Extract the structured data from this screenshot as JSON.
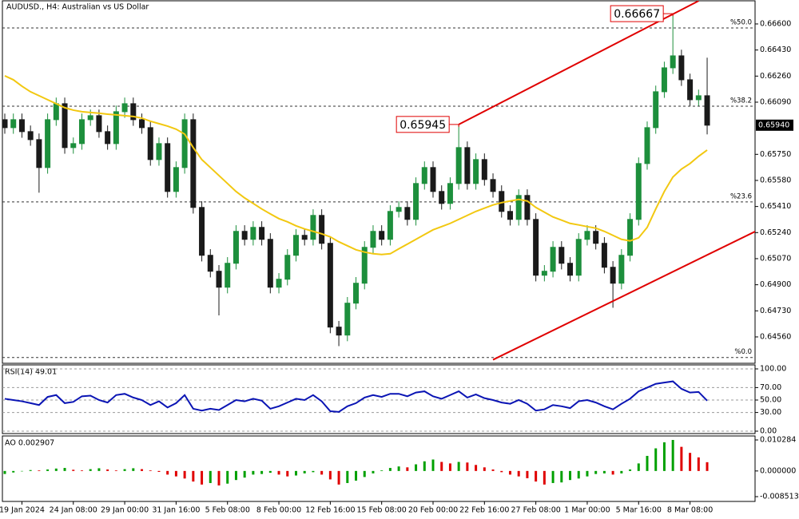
{
  "chart_data": [
    {
      "type": "candlestick",
      "title": "AUDUSD., H4:  Australian vs US Dollar",
      "open": [
        0.65976,
        0.65924,
        0.65976,
        0.65898,
        0.65846,
        0.65664,
        0.65976,
        0.6608,
        0.65794,
        0.6582,
        0.65976,
        0.66002,
        0.65898,
        0.6582,
        0.66028,
        0.6608,
        0.65976,
        0.65924,
        0.65716,
        0.6582,
        0.65508,
        0.65664,
        0.65976,
        0.65404,
        0.65092,
        0.64988,
        0.64884,
        0.6504,
        0.65248,
        0.65196,
        0.65274,
        0.65196,
        0.64884,
        0.64936,
        0.65092,
        0.65222,
        0.65196,
        0.65352,
        0.6517,
        0.64624,
        0.64572,
        0.6478,
        0.6491,
        0.65144,
        0.65248,
        0.65196,
        0.65378,
        0.65404,
        0.65326,
        0.6556,
        0.65664,
        0.65508,
        0.6543,
        0.6556,
        0.65794,
        0.6556,
        0.65716,
        0.65586,
        0.65508,
        0.65378,
        0.65326,
        0.65482,
        0.65326,
        0.64962,
        0.64988,
        0.65144,
        0.6504,
        0.64962,
        0.65196,
        0.65248,
        0.6517,
        0.65014,
        0.6491,
        0.65092,
        0.65326,
        0.6569,
        0.65924,
        0.66158,
        0.66314,
        0.66392,
        0.66236,
        0.66106,
        0.66132
      ],
      "high": [
        0.66016,
        0.66016,
        0.66016,
        0.65938,
        0.65886,
        0.66016,
        0.6612,
        0.6612,
        0.6586,
        0.66016,
        0.66042,
        0.66042,
        0.65938,
        0.66068,
        0.6612,
        0.6612,
        0.66016,
        0.65964,
        0.6586,
        0.6586,
        0.65704,
        0.66016,
        0.66016,
        0.65444,
        0.65132,
        0.65028,
        0.6508,
        0.65288,
        0.65288,
        0.65314,
        0.65314,
        0.65236,
        0.64976,
        0.65132,
        0.65262,
        0.65262,
        0.65392,
        0.65392,
        0.6521,
        0.64664,
        0.6482,
        0.6495,
        0.65184,
        0.65288,
        0.65288,
        0.65418,
        0.65444,
        0.65444,
        0.656,
        0.65704,
        0.65704,
        0.65548,
        0.656,
        0.65945,
        0.65834,
        0.65756,
        0.65756,
        0.65626,
        0.65548,
        0.65418,
        0.65522,
        0.65522,
        0.65366,
        0.65028,
        0.65184,
        0.65184,
        0.6508,
        0.65236,
        0.65288,
        0.65288,
        0.6521,
        0.65054,
        0.65132,
        0.65366,
        0.6573,
        0.65964,
        0.66198,
        0.66354,
        0.66667,
        0.66432,
        0.66276,
        0.66172,
        0.6638
      ],
      "low": [
        0.65884,
        0.65884,
        0.65858,
        0.65806,
        0.655,
        0.65624,
        0.65936,
        0.65754,
        0.65754,
        0.6578,
        0.65936,
        0.65858,
        0.6578,
        0.6578,
        0.65988,
        0.65936,
        0.65884,
        0.65676,
        0.65676,
        0.65468,
        0.65468,
        0.65624,
        0.65364,
        0.65052,
        0.64948,
        0.647,
        0.64844,
        0.65,
        0.65156,
        0.65156,
        0.65156,
        0.64844,
        0.64844,
        0.64896,
        0.65052,
        0.65156,
        0.65156,
        0.6513,
        0.64584,
        0.645,
        0.64532,
        0.6474,
        0.6487,
        0.65104,
        0.65156,
        0.65156,
        0.65338,
        0.65286,
        0.65286,
        0.6552,
        0.65468,
        0.6539,
        0.6539,
        0.6552,
        0.6552,
        0.6552,
        0.65546,
        0.65468,
        0.65338,
        0.65286,
        0.65286,
        0.65286,
        0.64922,
        0.64922,
        0.64948,
        0.65,
        0.64922,
        0.64922,
        0.65156,
        0.6513,
        0.64974,
        0.6475,
        0.6487,
        0.65052,
        0.65286,
        0.6565,
        0.65884,
        0.66118,
        0.66274,
        0.66196,
        0.66066,
        0.66066,
        0.6588
      ],
      "close": [
        0.65924,
        0.65976,
        0.65898,
        0.65846,
        0.65664,
        0.65976,
        0.6608,
        0.65794,
        0.6582,
        0.65976,
        0.66002,
        0.65898,
        0.6582,
        0.66028,
        0.6608,
        0.65976,
        0.65924,
        0.65716,
        0.6582,
        0.65508,
        0.65664,
        0.65976,
        0.65404,
        0.65092,
        0.64988,
        0.64884,
        0.6504,
        0.65248,
        0.65196,
        0.65274,
        0.65196,
        0.64884,
        0.64936,
        0.65092,
        0.65222,
        0.65196,
        0.65352,
        0.6517,
        0.64624,
        0.64572,
        0.6478,
        0.6491,
        0.65144,
        0.65248,
        0.65196,
        0.65378,
        0.65404,
        0.65326,
        0.6556,
        0.65664,
        0.65508,
        0.6543,
        0.6556,
        0.65794,
        0.6556,
        0.65716,
        0.65586,
        0.65508,
        0.65378,
        0.65326,
        0.65482,
        0.65326,
        0.64962,
        0.64988,
        0.65144,
        0.6504,
        0.64962,
        0.65196,
        0.65248,
        0.6517,
        0.65014,
        0.6491,
        0.65092,
        0.65326,
        0.6569,
        0.65924,
        0.66158,
        0.66314,
        0.66392,
        0.66236,
        0.66106,
        0.66132,
        0.6594
      ],
      "up_color": "#1d8f3c",
      "down_color": "#1a1a1a",
      "ma": {
        "color": "#f2c811",
        "values": [
          0.66262,
          0.66236,
          0.66194,
          0.66158,
          0.66132,
          0.66106,
          0.6608,
          0.66054,
          0.66038,
          0.66028,
          0.66023,
          0.66018,
          0.66012,
          0.66007,
          0.66002,
          0.65997,
          0.65986,
          0.65966,
          0.6595,
          0.65934,
          0.65914,
          0.65882,
          0.65794,
          0.65716,
          0.65664,
          0.65612,
          0.6556,
          0.65508,
          0.65466,
          0.6543,
          0.65394,
          0.65362,
          0.65331,
          0.6531,
          0.65284,
          0.65264,
          0.65248,
          0.65232,
          0.65212,
          0.6518,
          0.65154,
          0.65128,
          0.65113,
          0.65102,
          0.65097,
          0.65102,
          0.65134,
          0.65165,
          0.65196,
          0.65227,
          0.65258,
          0.65279,
          0.653,
          0.65326,
          0.65352,
          0.65378,
          0.65399,
          0.6542,
          0.65435,
          0.65446,
          0.65456,
          0.65446,
          0.65404,
          0.65373,
          0.65342,
          0.65321,
          0.653,
          0.6529,
          0.65279,
          0.65269,
          0.65248,
          0.65222,
          0.65196,
          0.65186,
          0.65206,
          0.65274,
          0.65394,
          0.65508,
          0.65602,
          0.65654,
          0.6569,
          0.65737,
          0.65778
        ]
      },
      "ylim": [
        0.64388,
        0.66756
      ],
      "yticks": [
        {
          "value": 0.666,
          "label": "0.66600"
        },
        {
          "value": 0.6643,
          "label": "0.66430"
        },
        {
          "value": 0.6626,
          "label": "0.66260"
        },
        {
          "value": 0.6609,
          "label": "0.66090"
        },
        {
          "value": 0.6575,
          "label": "0.65750"
        },
        {
          "value": 0.6558,
          "label": "0.65580"
        },
        {
          "value": 0.6541,
          "label": "0.65410"
        },
        {
          "value": 0.6524,
          "label": "0.65240"
        },
        {
          "value": 0.6507,
          "label": "0.65070"
        },
        {
          "value": 0.649,
          "label": "0.64900"
        },
        {
          "value": 0.6473,
          "label": "0.64730"
        },
        {
          "value": 0.6456,
          "label": "0.64560"
        }
      ],
      "last_price": {
        "value": 0.6594,
        "label": "0.65940"
      },
      "fib_levels": [
        {
          "value": 0.66574,
          "label": "%50.0"
        },
        {
          "value": 0.66064,
          "label": "%38.2"
        },
        {
          "value": 0.6544,
          "label": "%23.6"
        },
        {
          "value": 0.64426,
          "label": "%0.0"
        }
      ],
      "channel": {
        "color": "#e00000",
        "lines": [
          [
            {
              "x": 53,
              "y": 0.65945
            },
            {
              "x": 81,
              "y": 0.6675
            }
          ],
          [
            {
              "x": 57,
              "y": 0.64411
            },
            {
              "x": 88,
              "y": 0.65258
            }
          ]
        ]
      },
      "annotations": [
        {
          "x": 78,
          "y": 0.66667
        },
        {
          "x": 53,
          "y": 0.65945
        }
      ],
      "xticks": [
        {
          "value": 2,
          "label": "19 Jan 2024"
        },
        {
          "value": 8,
          "label": "24 Jan 08:00"
        },
        {
          "value": 14,
          "label": "29 Jan 00:00"
        },
        {
          "value": 20,
          "label": "31 Jan 16:00"
        },
        {
          "value": 26,
          "label": "5 Feb 08:00"
        },
        {
          "value": 32,
          "label": "8 Feb 00:00"
        },
        {
          "value": 38,
          "label": "12 Feb 16:00"
        },
        {
          "value": 44,
          "label": "15 Feb 08:00"
        },
        {
          "value": 50,
          "label": "20 Feb 00:00"
        },
        {
          "value": 56,
          "label": "22 Feb 16:00"
        },
        {
          "value": 62,
          "label": "27 Feb 08:00"
        },
        {
          "value": 68,
          "label": "1 Mar 00:00"
        },
        {
          "value": 74,
          "label": "5 Mar 16:00"
        },
        {
          "value": 80,
          "label": "8 Mar 08:00"
        }
      ]
    },
    {
      "type": "line",
      "title": "RSI(14) 49.01",
      "color": "#0a14b4",
      "values": [
        52,
        50,
        48,
        45,
        42,
        55,
        58,
        45,
        47,
        56,
        57,
        50,
        46,
        58,
        60,
        54,
        50,
        42,
        48,
        38,
        45,
        58,
        36,
        33,
        36,
        34,
        42,
        50,
        48,
        52,
        49,
        36,
        40,
        46,
        52,
        50,
        58,
        48,
        32,
        31,
        40,
        45,
        54,
        58,
        55,
        60,
        60,
        56,
        62,
        64,
        56,
        52,
        58,
        64,
        54,
        59,
        53,
        50,
        46,
        44,
        50,
        44,
        33,
        35,
        42,
        40,
        37,
        48,
        50,
        46,
        40,
        35,
        44,
        52,
        64,
        70,
        76,
        78,
        80,
        68,
        62,
        63,
        49.01
      ],
      "ylim": [
        0,
        100
      ],
      "yticks": [
        {
          "value": 100,
          "label": "100.00"
        },
        {
          "value": 70,
          "label": "70.00"
        },
        {
          "value": 50,
          "label": "50.00"
        },
        {
          "value": 30,
          "label": "30.00"
        },
        {
          "value": 0,
          "label": "0.00"
        }
      ],
      "grid": true
    },
    {
      "type": "bar",
      "title": "AO 0.002907",
      "up_color": "#00a000",
      "down_color": "#e00000",
      "values": [
        -0.001,
        -0.0005,
        0,
        0.0003,
        0.0002,
        0.0005,
        0.0008,
        0.001,
        0.0004,
        0.0002,
        0.0006,
        0.0009,
        0.0005,
        0.0002,
        0.0006,
        0.0009,
        0.0006,
        0.0002,
        -0.0003,
        -0.0012,
        -0.0018,
        -0.0025,
        -0.0035,
        -0.0045,
        -0.004,
        -0.0048,
        -0.0042,
        -0.003,
        -0.0022,
        -0.0012,
        -0.001,
        -0.0006,
        -0.0012,
        -0.0018,
        -0.0015,
        -0.0008,
        -0.0004,
        -0.0012,
        -0.0028,
        -0.0045,
        -0.004,
        -0.0032,
        -0.002,
        -0.0008,
        0.0002,
        0.001,
        0.0015,
        0.0012,
        0.0022,
        0.0032,
        0.0038,
        0.003,
        0.0025,
        0.003,
        0.0028,
        0.002,
        0.0012,
        0.0005,
        -0.0004,
        -0.0012,
        -0.0018,
        -0.0024,
        -0.0035,
        -0.0045,
        -0.004,
        -0.0038,
        -0.003,
        -0.0025,
        -0.0018,
        -0.001,
        -0.0008,
        -0.0012,
        -0.0008,
        0.0005,
        0.0025,
        0.005,
        0.0075,
        0.0095,
        0.010284,
        0.008,
        0.006,
        0.0045,
        0.002907
      ],
      "ylim": [
        -0.008513,
        0.010284
      ],
      "yticks": [
        0.010284,
        {
          "value": 0,
          "label": "0.000000"
        },
        -0.008513
      ]
    }
  ]
}
